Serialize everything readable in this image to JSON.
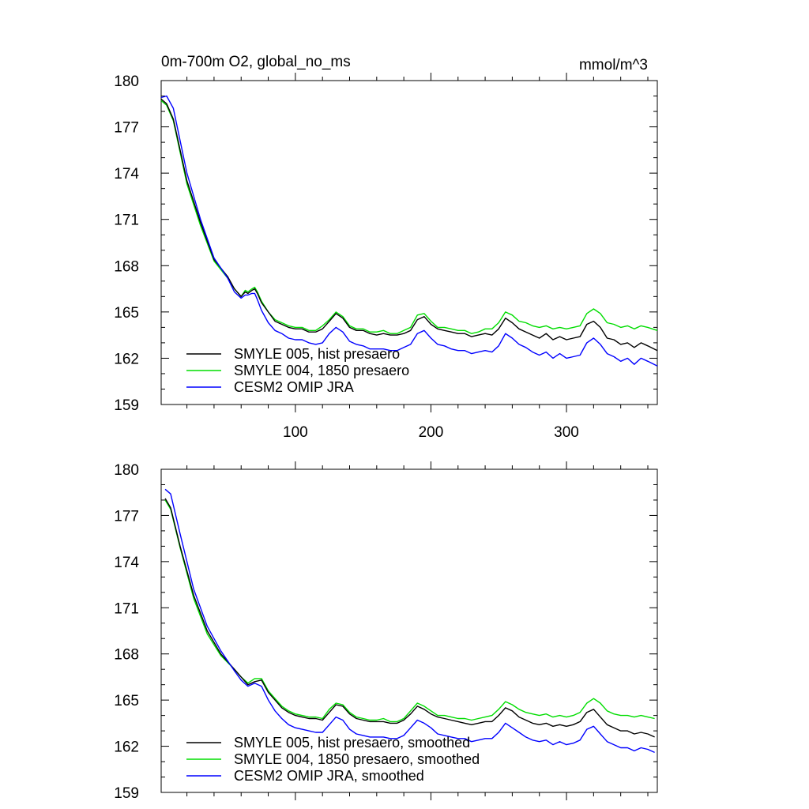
{
  "chart_data": [
    {
      "type": "line",
      "title": "0m-700m O2, global_no_ms",
      "units": "mmol/m^3",
      "xlim": [
        1,
        367
      ],
      "ylim": [
        159,
        180
      ],
      "xticks": [
        100,
        200,
        300
      ],
      "yticks": [
        159,
        162,
        165,
        168,
        171,
        174,
        177,
        180
      ],
      "x": [
        1,
        5,
        10,
        20,
        30,
        40,
        50,
        55,
        60,
        63,
        65,
        68,
        70,
        72,
        75,
        80,
        85,
        90,
        95,
        100,
        105,
        110,
        115,
        120,
        125,
        130,
        135,
        140,
        145,
        150,
        155,
        160,
        165,
        170,
        175,
        180,
        185,
        190,
        195,
        200,
        205,
        210,
        215,
        220,
        225,
        230,
        235,
        240,
        245,
        250,
        255,
        260,
        265,
        270,
        275,
        280,
        285,
        290,
        295,
        300,
        305,
        310,
        315,
        320,
        325,
        330,
        335,
        340,
        345,
        350,
        355,
        360,
        367
      ],
      "series": [
        {
          "name": "SMYLE 005, hist presaero",
          "color": "#000000",
          "values": [
            178.8,
            178.5,
            177.5,
            173.5,
            170.8,
            168.4,
            167.3,
            166.5,
            166.0,
            166.3,
            166.2,
            166.4,
            166.5,
            166.2,
            165.6,
            165.0,
            164.4,
            164.2,
            164.0,
            163.9,
            163.9,
            163.7,
            163.7,
            163.9,
            164.4,
            164.9,
            164.6,
            164.0,
            163.8,
            163.8,
            163.6,
            163.5,
            163.6,
            163.5,
            163.5,
            163.6,
            163.8,
            164.5,
            164.7,
            164.2,
            163.9,
            163.8,
            163.7,
            163.6,
            163.6,
            163.4,
            163.5,
            163.6,
            163.5,
            163.9,
            164.6,
            164.3,
            163.9,
            163.7,
            163.5,
            163.3,
            163.6,
            163.2,
            163.4,
            163.2,
            163.3,
            163.4,
            164.2,
            164.4,
            164.0,
            163.3,
            163.2,
            162.9,
            163.0,
            162.7,
            163.0,
            162.8,
            162.5
          ]
        },
        {
          "name": "SMYLE 004, 1850 presaero",
          "color": "#00dd00",
          "values": [
            178.7,
            178.4,
            177.4,
            173.3,
            170.6,
            168.3,
            167.2,
            166.5,
            166.0,
            166.4,
            166.3,
            166.5,
            166.6,
            166.3,
            165.7,
            165.0,
            164.5,
            164.3,
            164.1,
            164.0,
            164.0,
            163.8,
            163.8,
            164.1,
            164.5,
            165.0,
            164.7,
            164.1,
            163.9,
            163.9,
            163.7,
            163.7,
            163.8,
            163.6,
            163.6,
            163.8,
            164.0,
            164.8,
            164.9,
            164.4,
            164.0,
            164.0,
            163.9,
            163.8,
            163.8,
            163.6,
            163.7,
            163.9,
            163.9,
            164.3,
            165.0,
            164.8,
            164.4,
            164.3,
            164.1,
            164.0,
            164.1,
            163.9,
            164.0,
            163.9,
            164.0,
            164.1,
            164.9,
            165.2,
            164.9,
            164.3,
            164.2,
            164.0,
            164.1,
            163.9,
            164.1,
            164.0,
            163.8
          ]
        },
        {
          "name": "CESM2 OMIP JRA",
          "color": "#0000ff",
          "values": [
            178.9,
            179.0,
            178.2,
            174.0,
            171.0,
            168.5,
            167.2,
            166.3,
            165.9,
            166.1,
            166.1,
            166.2,
            166.2,
            165.8,
            165.1,
            164.3,
            163.8,
            163.6,
            163.3,
            163.2,
            163.2,
            163.0,
            162.9,
            163.0,
            163.6,
            164.0,
            163.7,
            163.1,
            162.9,
            162.8,
            162.6,
            162.6,
            162.6,
            162.5,
            162.5,
            162.7,
            162.9,
            163.6,
            163.8,
            163.3,
            162.9,
            162.8,
            162.6,
            162.5,
            162.5,
            162.3,
            162.4,
            162.5,
            162.4,
            162.8,
            163.6,
            163.3,
            162.9,
            162.7,
            162.4,
            162.2,
            162.4,
            162.0,
            162.3,
            162.0,
            162.1,
            162.2,
            163.0,
            163.3,
            162.9,
            162.3,
            162.1,
            161.8,
            162.0,
            161.6,
            162.0,
            161.8,
            161.5
          ]
        }
      ]
    },
    {
      "type": "line",
      "title": "",
      "units": "",
      "xlim": [
        1,
        367
      ],
      "ylim": [
        159,
        180
      ],
      "xticks": [
        100,
        200,
        300
      ],
      "show_xtick_labels": false,
      "yticks": [
        159,
        162,
        165,
        168,
        171,
        174,
        177,
        180
      ],
      "x": [
        4,
        8,
        15,
        25,
        35,
        45,
        55,
        60,
        65,
        70,
        75,
        80,
        85,
        90,
        95,
        100,
        105,
        110,
        115,
        120,
        125,
        130,
        135,
        140,
        145,
        150,
        155,
        160,
        165,
        170,
        175,
        180,
        185,
        190,
        195,
        200,
        205,
        210,
        215,
        220,
        225,
        230,
        235,
        240,
        245,
        250,
        255,
        260,
        265,
        270,
        275,
        280,
        285,
        290,
        295,
        300,
        305,
        310,
        315,
        320,
        325,
        330,
        335,
        340,
        345,
        350,
        355,
        360,
        365
      ],
      "series": [
        {
          "name": "SMYLE 005, hist presaero, smoothed",
          "color": "#000000",
          "values": [
            178.1,
            177.5,
            175.0,
            171.8,
            169.5,
            168.0,
            167.0,
            166.5,
            166.0,
            166.2,
            166.3,
            165.5,
            165.0,
            164.5,
            164.2,
            164.0,
            163.9,
            163.8,
            163.8,
            163.7,
            164.2,
            164.7,
            164.6,
            164.1,
            163.8,
            163.7,
            163.6,
            163.6,
            163.6,
            163.5,
            163.5,
            163.7,
            164.1,
            164.6,
            164.4,
            164.1,
            163.9,
            163.8,
            163.7,
            163.6,
            163.5,
            163.4,
            163.5,
            163.6,
            163.6,
            164.0,
            164.5,
            164.3,
            163.9,
            163.7,
            163.5,
            163.4,
            163.5,
            163.3,
            163.4,
            163.3,
            163.4,
            163.6,
            164.2,
            164.4,
            163.9,
            163.4,
            163.2,
            163.0,
            163.0,
            162.8,
            162.9,
            162.8,
            162.6
          ]
        },
        {
          "name": "SMYLE 004, 1850 presaero, smoothed",
          "color": "#00dd00",
          "values": [
            178.0,
            177.4,
            174.9,
            171.6,
            169.3,
            167.9,
            167.0,
            166.5,
            166.1,
            166.4,
            166.4,
            165.6,
            165.1,
            164.6,
            164.3,
            164.1,
            164.0,
            163.9,
            163.9,
            163.8,
            164.4,
            164.8,
            164.7,
            164.2,
            163.9,
            163.8,
            163.7,
            163.7,
            163.8,
            163.6,
            163.6,
            163.8,
            164.3,
            164.8,
            164.6,
            164.3,
            164.0,
            164.0,
            163.9,
            163.8,
            163.8,
            163.7,
            163.8,
            163.9,
            164.0,
            164.4,
            164.9,
            164.7,
            164.4,
            164.2,
            164.1,
            164.0,
            164.1,
            163.9,
            164.0,
            163.9,
            164.0,
            164.2,
            164.8,
            165.1,
            164.8,
            164.3,
            164.1,
            164.0,
            164.0,
            163.9,
            164.0,
            163.9,
            163.8
          ]
        },
        {
          "name": "CESM2 OMIP JRA, smoothed",
          "color": "#0000ff",
          "values": [
            178.7,
            178.4,
            175.8,
            172.2,
            169.8,
            168.2,
            166.9,
            166.3,
            165.9,
            166.1,
            165.9,
            165.0,
            164.3,
            163.8,
            163.4,
            163.2,
            163.1,
            163.0,
            162.9,
            162.9,
            163.4,
            163.9,
            163.7,
            163.1,
            162.8,
            162.7,
            162.6,
            162.6,
            162.6,
            162.5,
            162.5,
            162.7,
            163.2,
            163.7,
            163.5,
            163.2,
            162.8,
            162.7,
            162.6,
            162.5,
            162.5,
            162.3,
            162.4,
            162.5,
            162.5,
            162.9,
            163.5,
            163.2,
            162.9,
            162.6,
            162.4,
            162.3,
            162.4,
            162.1,
            162.3,
            162.1,
            162.2,
            162.4,
            163.1,
            163.3,
            162.8,
            162.3,
            162.1,
            161.9,
            161.9,
            161.7,
            161.9,
            161.8,
            161.6
          ]
        }
      ]
    }
  ]
}
